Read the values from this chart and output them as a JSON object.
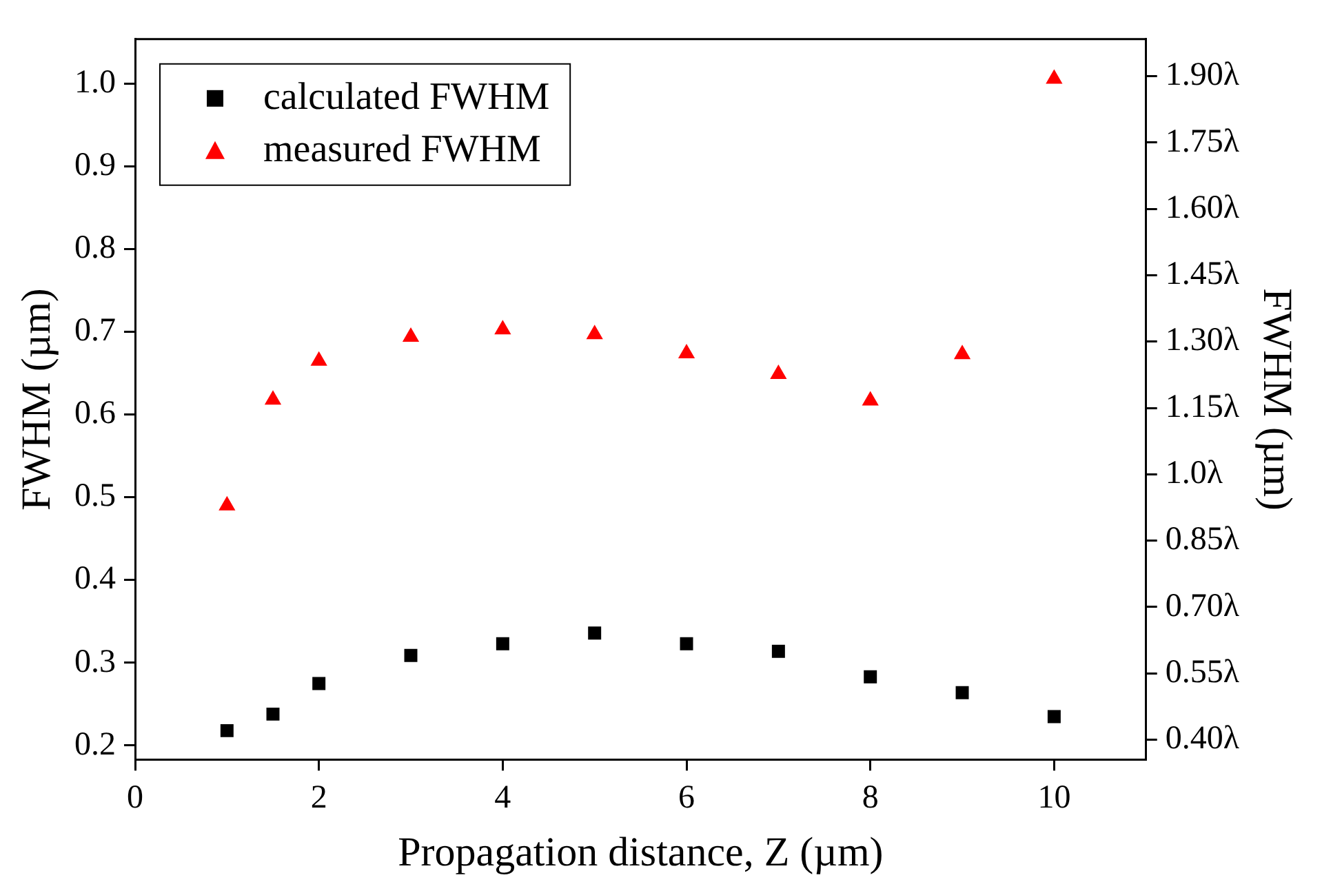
{
  "chart_data": {
    "type": "scatter",
    "xlabel": "Propagation distance, Z (µm)",
    "ylabel": "FWHM (µm)",
    "y2label": "FWHM (µm)",
    "x": [
      1,
      1.5,
      2,
      3,
      4,
      5,
      6,
      7,
      8,
      9,
      10
    ],
    "series": [
      {
        "name": "calculated FWHM",
        "color": "#000000",
        "marker": "square",
        "values": [
          0.218,
          0.238,
          0.275,
          0.309,
          0.323,
          0.336,
          0.323,
          0.314,
          0.283,
          0.264,
          0.235
        ]
      },
      {
        "name": "measured FWHM",
        "color": "#ff0000",
        "marker": "triangle",
        "values": [
          0.49,
          0.618,
          0.665,
          0.694,
          0.703,
          0.697,
          0.674,
          0.649,
          0.617,
          0.673,
          1.006
        ]
      }
    ],
    "xlim": [
      0,
      11
    ],
    "xticks": [
      0,
      2,
      4,
      6,
      8,
      10
    ],
    "ylim": [
      0.183,
      1.054
    ],
    "yticks": [
      {
        "value": 0.2,
        "label": "0.2"
      },
      {
        "value": 0.3,
        "label": "0.3"
      },
      {
        "value": 0.4,
        "label": "0.4"
      },
      {
        "value": 0.5,
        "label": "0.5"
      },
      {
        "value": 0.6,
        "label": "0.6"
      },
      {
        "value": 0.7,
        "label": "0.7"
      },
      {
        "value": 0.8,
        "label": "0.8"
      },
      {
        "value": 0.9,
        "label": "0.9"
      },
      {
        "value": 1.0,
        "label": "1.0"
      }
    ],
    "y2lim": [
      0.355,
      1.984
    ],
    "y2ticks": [
      {
        "value": 0.4,
        "label": "0.40λ"
      },
      {
        "value": 0.55,
        "label": "0.55λ"
      },
      {
        "value": 0.7,
        "label": "0.70λ"
      },
      {
        "value": 0.85,
        "label": "0.85λ"
      },
      {
        "value": 1.0,
        "label": "1.0λ"
      },
      {
        "value": 1.15,
        "label": "1.15λ"
      },
      {
        "value": 1.3,
        "label": "1.30λ"
      },
      {
        "value": 1.45,
        "label": "1.45λ"
      },
      {
        "value": 1.6,
        "label": "1.60λ"
      },
      {
        "value": 1.75,
        "label": "1.75λ"
      },
      {
        "value": 1.9,
        "label": "1.90λ"
      }
    ],
    "grid": false,
    "legend": "top left"
  }
}
